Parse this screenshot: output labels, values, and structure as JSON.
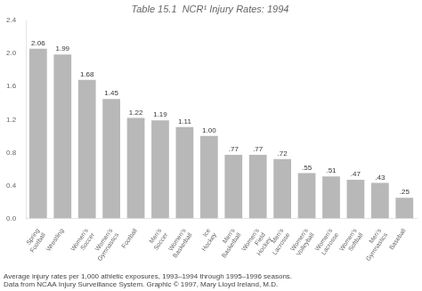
{
  "chart_data": {
    "type": "bar",
    "title": "Table 15.1  NCR¹ Injury Rates: 1994",
    "categories": [
      "Spring\nFootball",
      "Wrestling",
      "Women's\nSoccer",
      "Women's\nGymnastics",
      "Football",
      "Men's\nSoccer",
      "Women's\nBasketball",
      "Ice\nHockey",
      "Men's\nBasketball",
      "Women's\nField\nHockey",
      "Men's\nLacrosse",
      "Women's\nVolleyball",
      "Women's\nLacrosse",
      "Women's\nSoftball",
      "Men's\nGymnastics",
      "Baseball"
    ],
    "values": [
      2.06,
      1.99,
      1.68,
      1.45,
      1.22,
      1.19,
      1.11,
      1.0,
      0.77,
      0.77,
      0.72,
      0.55,
      0.51,
      0.47,
      0.43,
      0.25
    ],
    "value_labels": [
      "2.06",
      "1.99",
      "1.68",
      "1.45",
      "1.22",
      "1.19",
      "1.11",
      "1.00",
      ".77",
      ".77",
      ".72",
      ".55",
      ".51",
      ".47",
      ".43",
      ".25"
    ],
    "data_labels": true,
    "color": "#b8b8b8",
    "ylim": [
      0,
      2.4
    ],
    "yticks": [
      {
        "value": 0,
        "label": "0.0"
      },
      0.4,
      0.8,
      1.2,
      1.6,
      {
        "value": 2,
        "label": "2.0"
      },
      2.4
    ],
    "grid": false,
    "annotations": [
      "Average injury rates per 1,000 athletic exposures, 1993–1994 through 1995–1996 seasons.",
      "Data from NCAA Injury Surveillance System. Graphic © 1997, Mary Lloyd Ireland, M.D."
    ]
  }
}
